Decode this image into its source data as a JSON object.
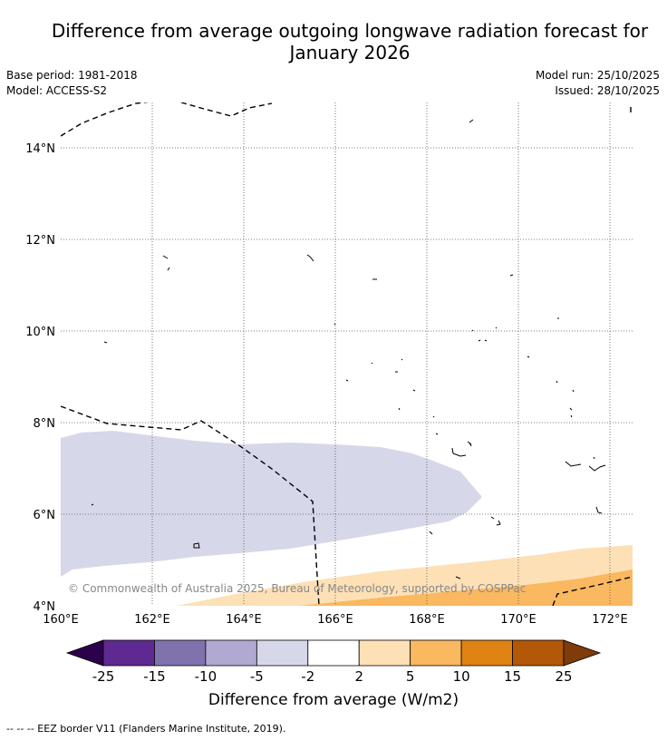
{
  "title_line1": "Difference from average outgoing longwave radiation forecast for",
  "title_line2": "January 2026",
  "base_period": "Base period: 1981-2018",
  "model": "Model: ACCESS-S2",
  "model_run": "Model run: 25/10/2025",
  "issued": "Issued: 28/10/2025",
  "copyright": "© Commonwealth of Australia 2025, Bureau of Meteorology, supported by COSPPac",
  "lat_labels": [
    "14°N",
    "12°N",
    "10°N",
    "8°N",
    "6°N",
    "4°N"
  ],
  "lon_labels": [
    "160°E",
    "162°E",
    "164°E",
    "166°E",
    "168°E",
    "170°E",
    "172°E"
  ],
  "colorbar": {
    "ticks": [
      "-25",
      "-15",
      "-10",
      "-5",
      "-2",
      "2",
      "5",
      "10",
      "15",
      "25"
    ],
    "colors": [
      "#2d004b",
      "#5e2a91",
      "#8073ad",
      "#b1a9d2",
      "#d7d7ea",
      "#ffffff",
      "#fde0b6",
      "#fab860",
      "#e08214",
      "#b35806",
      "#7f3b08"
    ],
    "label": "Difference from average (W/m2)"
  },
  "legend_note": "--  --  -- EEZ border V11 (Flanders Marine Institute, 2019).",
  "colors": {
    "neg_light": "#d7d7ea",
    "pos_light": "#fde0b6",
    "pos_medium": "#fab860"
  }
}
